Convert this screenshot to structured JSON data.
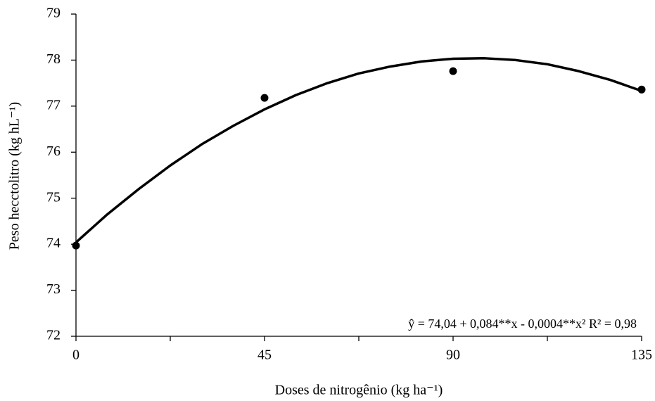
{
  "chart_data": {
    "type": "scatter",
    "x_label": "Doses de nitrogênio (kg ha⁻¹)",
    "y_label": "Peso hecctolitro (kg hL⁻¹)",
    "annotation": "ŷ = 74,04 + 0,084**x - 0,0004**x²  R² = 0,98",
    "xlim": [
      0,
      135
    ],
    "xticks": [
      0,
      45,
      90,
      135
    ],
    "xminorticks": [
      22.5,
      67.5,
      112.5
    ],
    "ylim": [
      72,
      79
    ],
    "yticks": [
      72,
      73,
      74,
      75,
      76,
      77,
      78,
      79
    ],
    "grid": false,
    "series": [
      {
        "type": "scatter",
        "color": "#000000",
        "x": [
          0,
          45,
          90,
          135
        ],
        "values": [
          73.97,
          77.18,
          77.76,
          77.36
        ]
      },
      {
        "type": "line",
        "color": "#000000",
        "x": [
          0,
          7.5,
          15,
          22.5,
          30,
          37.5,
          45,
          52.5,
          60,
          67.5,
          75,
          82.5,
          90,
          97.5,
          105,
          112.5,
          120,
          127.5,
          135
        ],
        "values": [
          74.04,
          74.65,
          75.2,
          75.71,
          76.17,
          76.57,
          76.93,
          77.24,
          77.5,
          77.71,
          77.86,
          77.97,
          78.03,
          78.04,
          78.0,
          77.91,
          77.76,
          77.57,
          77.33
        ]
      }
    ]
  }
}
